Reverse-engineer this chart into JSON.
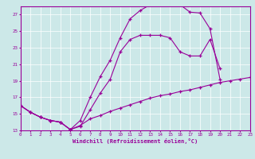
{
  "xlabel": "Windchill (Refroidissement éolien,°C)",
  "bg_color": "#cce8e8",
  "line_color": "#990099",
  "xlim": [
    0,
    23
  ],
  "ylim": [
    13,
    28
  ],
  "yticks": [
    13,
    15,
    17,
    19,
    21,
    23,
    25,
    27
  ],
  "xticks": [
    0,
    1,
    2,
    3,
    4,
    5,
    6,
    7,
    8,
    9,
    10,
    11,
    12,
    13,
    14,
    15,
    16,
    17,
    18,
    19,
    20,
    21,
    22,
    23
  ],
  "line1_x": [
    0,
    1,
    2,
    3,
    4,
    5,
    6,
    7,
    8,
    9,
    10,
    11,
    12,
    13,
    14,
    15,
    16,
    17,
    18,
    19,
    20
  ],
  "line1_y": [
    16.0,
    15.2,
    14.6,
    14.2,
    14.0,
    13.1,
    14.2,
    17.0,
    19.5,
    21.5,
    24.2,
    26.5,
    27.5,
    28.2,
    28.3,
    28.2,
    28.2,
    27.3,
    27.2,
    25.3,
    19.2
  ],
  "line2_x": [
    0,
    1,
    2,
    3,
    4,
    5,
    6,
    7,
    8,
    9,
    10,
    11,
    12,
    13,
    14,
    15,
    16,
    17,
    18,
    19,
    20
  ],
  "line2_y": [
    16.0,
    15.2,
    14.6,
    14.2,
    14.0,
    13.1,
    13.5,
    15.5,
    17.5,
    19.2,
    22.5,
    24.0,
    24.5,
    24.5,
    24.5,
    24.2,
    22.5,
    22.0,
    22.0,
    24.0,
    20.5
  ],
  "line3_x": [
    0,
    1,
    2,
    3,
    4,
    5,
    6,
    7,
    8,
    9,
    10,
    11,
    12,
    13,
    14,
    15,
    16,
    17,
    18,
    19,
    20,
    21,
    22,
    23
  ],
  "line3_y": [
    16.0,
    15.2,
    14.6,
    14.2,
    14.0,
    13.1,
    13.6,
    14.4,
    14.8,
    15.3,
    15.7,
    16.1,
    16.5,
    16.9,
    17.2,
    17.4,
    17.7,
    17.9,
    18.2,
    18.5,
    18.8,
    19.0,
    19.2,
    19.4
  ]
}
